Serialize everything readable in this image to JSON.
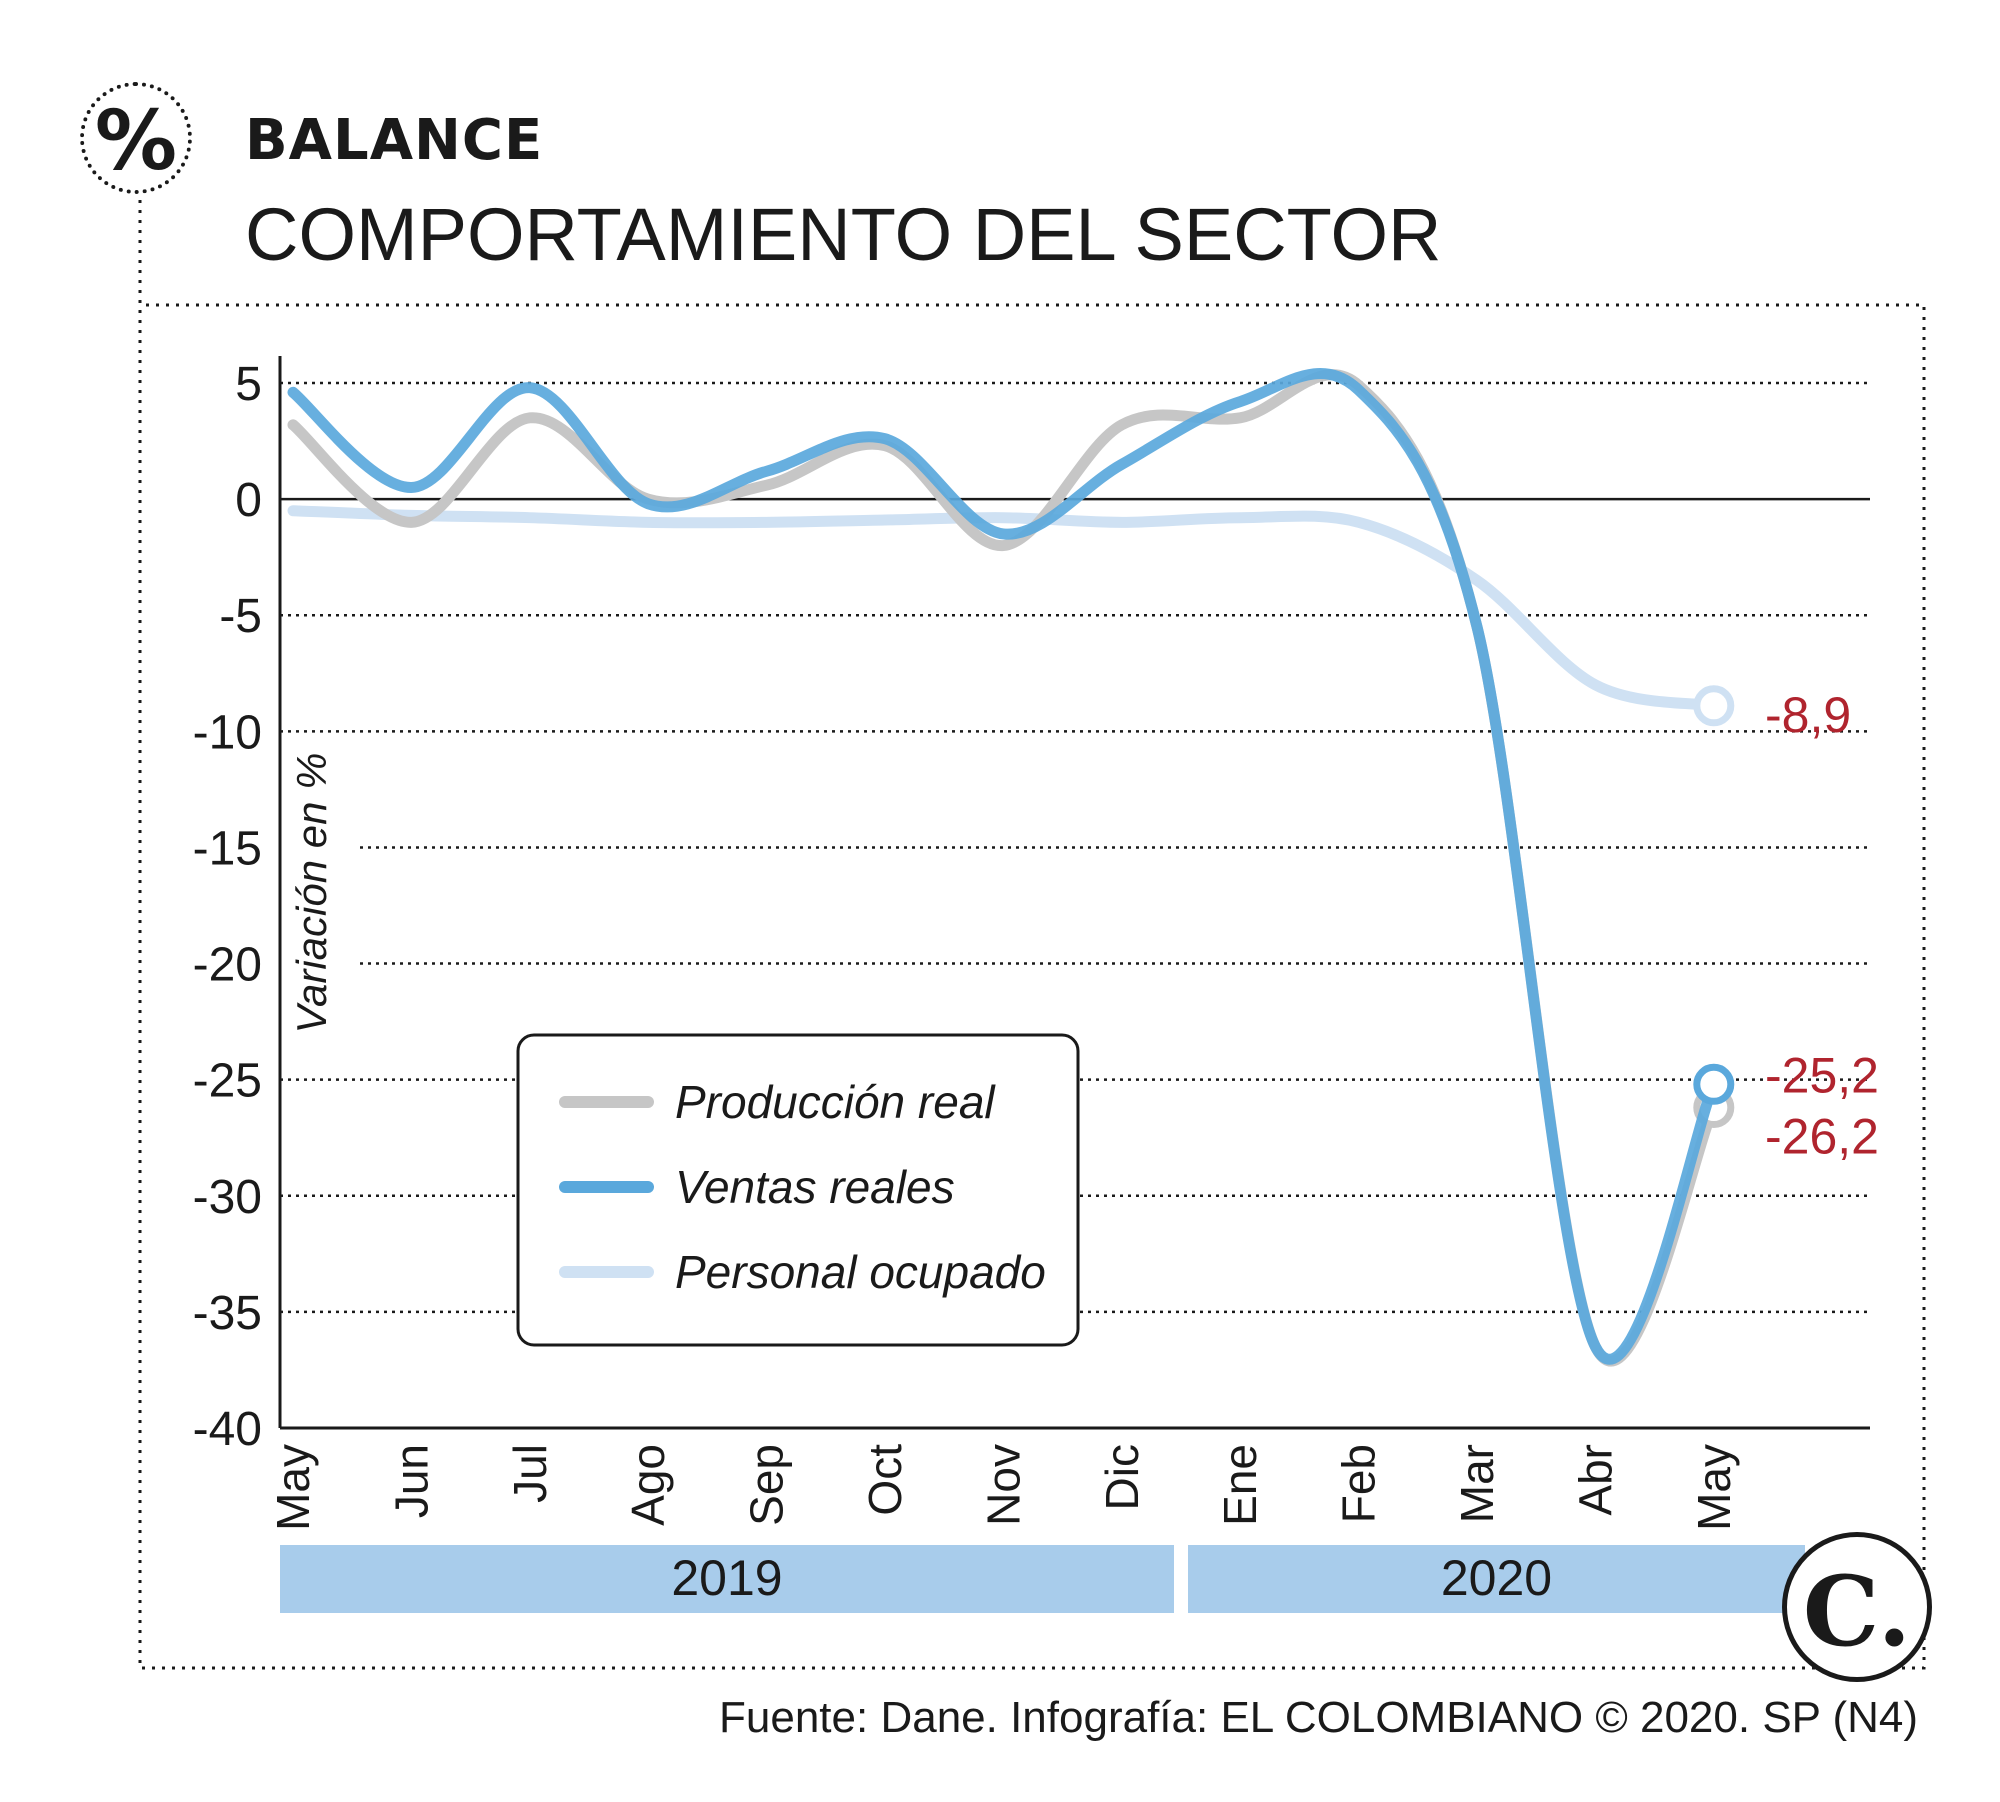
{
  "header": {
    "kicker": "BALANCE",
    "title": "COMPORTAMIENTO DEL SECTOR",
    "badge_symbol": "%"
  },
  "footer": {
    "source": "Fuente: Dane. Infografía: EL COLOMBIANO © 2020. SP (N4)"
  },
  "logo": {
    "symbol": "C."
  },
  "colors": {
    "produccion": "#c6c6c6",
    "ventas": "#5aa8dc",
    "personal": "#cfe1f3",
    "year_band": "#a8cceb",
    "callout": "#b0242e",
    "ink": "#1a1a1a"
  },
  "chart_data": {
    "type": "line",
    "ylabel": "Variación en %",
    "ylim": [
      -40,
      5
    ],
    "yticks": [
      5,
      0,
      -5,
      -10,
      -15,
      -20,
      -25,
      -30,
      -35,
      -40
    ],
    "grid": true,
    "legend_position": "center-left",
    "categories": [
      "May",
      "Jun",
      "Jul",
      "Ago",
      "Sep",
      "Oct",
      "Nov",
      "Dic",
      "Ene",
      "Feb",
      "Mar",
      "Abr",
      "May"
    ],
    "year_groups": [
      {
        "label": "2019",
        "from": 0,
        "to": 7
      },
      {
        "label": "2020",
        "from": 8,
        "to": 12
      }
    ],
    "series": [
      {
        "name": "Producción real",
        "color_key": "produccion",
        "values": [
          3.2,
          -1.0,
          3.5,
          0.0,
          0.6,
          2.3,
          -2.0,
          3.2,
          3.5,
          4.9,
          -5.5,
          -36.5,
          -26.2
        ]
      },
      {
        "name": "Ventas reales",
        "color_key": "ventas",
        "values": [
          4.6,
          0.5,
          4.8,
          -0.2,
          1.2,
          2.6,
          -1.5,
          1.5,
          4.2,
          4.7,
          -5.5,
          -36.5,
          -25.2
        ]
      },
      {
        "name": "Personal ocupado",
        "color_key": "personal",
        "values": [
          -0.5,
          -0.7,
          -0.8,
          -1.0,
          -1.0,
          -0.9,
          -0.8,
          -1.0,
          -0.8,
          -1.0,
          -3.5,
          -8.0,
          -8.9
        ]
      }
    ],
    "annotations": [
      {
        "series": "Personal ocupado",
        "text": "-8,9"
      },
      {
        "series": "Ventas reales",
        "text": "-25,2"
      },
      {
        "series": "Producción real",
        "text": "-26,2"
      }
    ]
  }
}
